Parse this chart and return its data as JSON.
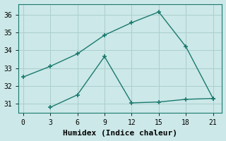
{
  "xlabel": "Humidex (Indice chaleur)",
  "ylabel": "",
  "background_color": "#cce8e8",
  "grid_color": "#aacfcf",
  "line_color": "#1a7a6e",
  "line1_x": [
    0,
    3,
    6,
    9,
    12,
    15,
    18,
    21
  ],
  "line1_y": [
    32.5,
    33.1,
    33.8,
    34.85,
    35.55,
    36.15,
    34.2,
    31.3
  ],
  "line2_x": [
    3,
    6,
    9,
    12,
    15,
    18,
    21
  ],
  "line2_y": [
    30.8,
    31.5,
    33.65,
    31.05,
    31.1,
    31.25,
    31.3
  ],
  "xlim": [
    -0.5,
    22
  ],
  "ylim": [
    30.5,
    36.6
  ],
  "xticks": [
    0,
    3,
    6,
    9,
    12,
    15,
    18,
    21
  ],
  "yticks": [
    31,
    32,
    33,
    34,
    35,
    36
  ],
  "fontsize": 8
}
